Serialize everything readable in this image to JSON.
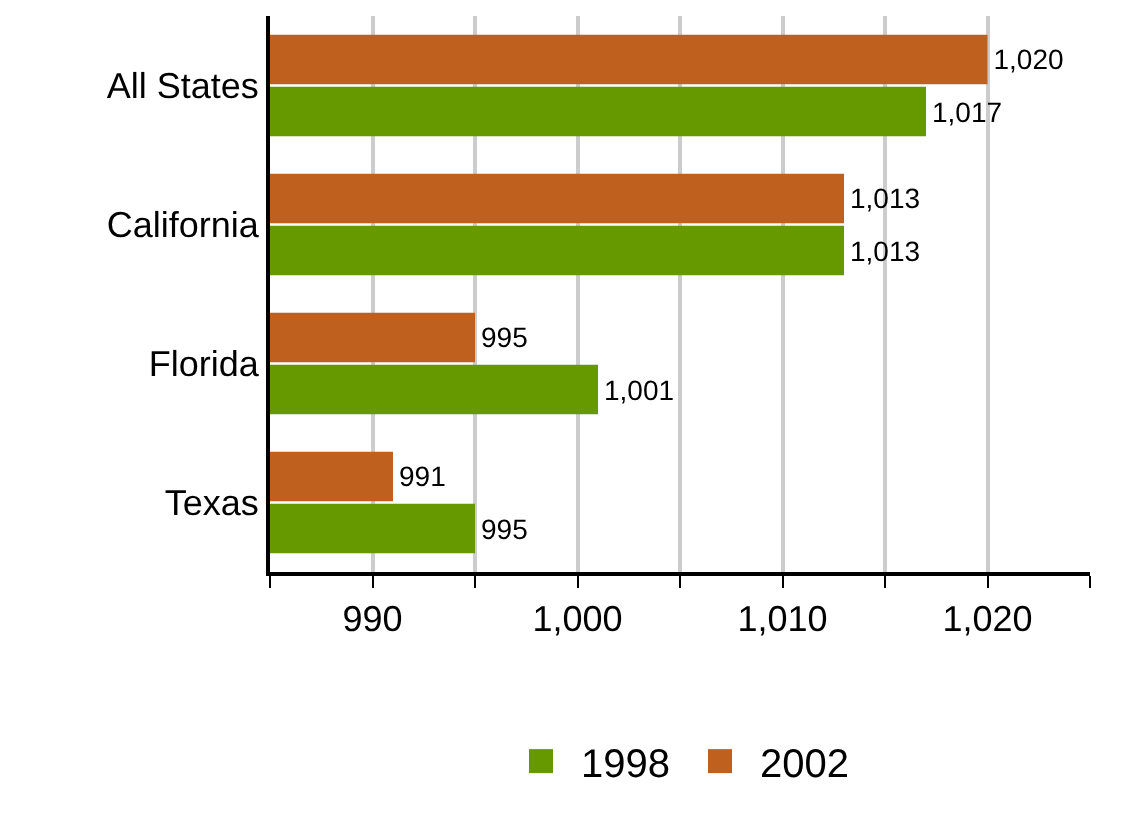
{
  "chart_data": {
    "type": "bar",
    "orientation": "horizontal",
    "categories": [
      "All States",
      "California",
      "Florida",
      "Texas"
    ],
    "series": [
      {
        "name": "1998",
        "color": "#669900",
        "values": [
          1017,
          1013,
          1001,
          995
        ],
        "value_labels": [
          "1,017",
          "1,013",
          "1,001",
          "995"
        ]
      },
      {
        "name": "2002",
        "color": "#c0601f",
        "values": [
          1020,
          1013,
          995,
          991
        ],
        "value_labels": [
          "1,020",
          "1,013",
          "995",
          "991"
        ]
      }
    ],
    "xlim": [
      985,
      1025
    ],
    "xticks": [
      {
        "value": 985,
        "label": null
      },
      990,
      {
        "value": 995,
        "label": null
      },
      {
        "value": 1000,
        "label": "1,000"
      },
      {
        "value": 1005,
        "label": null
      },
      {
        "value": 1010,
        "label": "1,010"
      },
      {
        "value": 1015,
        "label": null
      },
      {
        "value": 1020,
        "label": "1,020"
      },
      {
        "value": 1025,
        "label": null
      }
    ],
    "grid": "x",
    "legend": "bottom"
  }
}
